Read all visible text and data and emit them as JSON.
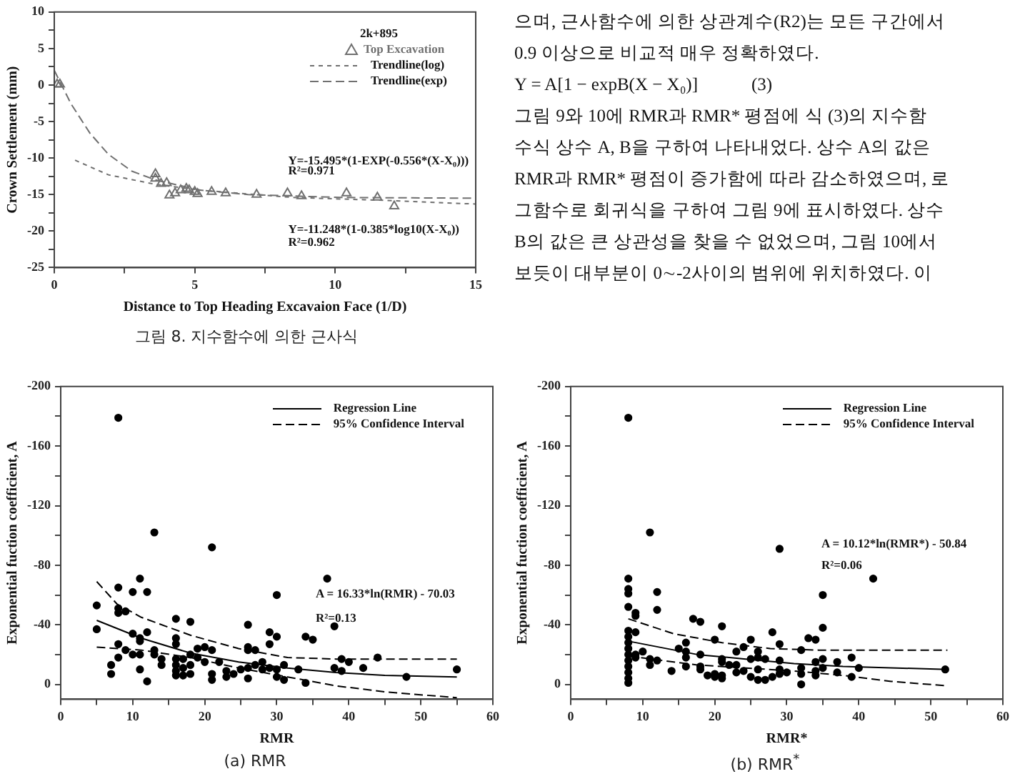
{
  "chart_data": [
    {
      "type": "scatter",
      "xlabel": "Distance to Top Heading Excavaion Face (1/D)",
      "ylabel": "Crown Settlement (mm)",
      "legend_title": "2k+895",
      "legend": "top right",
      "xlim": [
        0,
        15
      ],
      "xticks": [
        0,
        {
          "value": 2.5,
          "label": null
        },
        5,
        {
          "value": 7.5,
          "label": null
        },
        10,
        {
          "value": 12.5,
          "label": null
        },
        15
      ],
      "ylim": [
        -25,
        10
      ],
      "yticks": [
        -25,
        {
          "value": -22.5,
          "label": null
        },
        -20,
        {
          "value": -17.5,
          "label": null
        },
        -15,
        {
          "value": -12.5,
          "label": null
        },
        -10,
        {
          "value": -7.5,
          "label": null
        },
        -5,
        {
          "value": -2.5,
          "label": null
        },
        0,
        {
          "value": 2.5,
          "label": null
        },
        5,
        {
          "value": 7.5,
          "label": null
        },
        10
      ],
      "series": [
        {
          "name": "Top Excavation",
          "type": "scatter",
          "marker": "triangle",
          "color": "#707070",
          "x": [
            0.1,
            0.2,
            3.6,
            3.6,
            3.8,
            4.0,
            4.1,
            4.3,
            4.5,
            4.7,
            4.8,
            5.0,
            5.1,
            5.6,
            6.1,
            7.2,
            8.3,
            8.8,
            10.4,
            11.5,
            12.1
          ],
          "values": [
            0.1,
            0.1,
            -12.2,
            -12.8,
            -13.5,
            -13.4,
            -15.1,
            -14.8,
            -14.4,
            -14.2,
            -14.4,
            -14.6,
            -14.9,
            -14.6,
            -14.8,
            -15.0,
            -14.8,
            -15.2,
            -14.8,
            -15.4,
            -16.6
          ]
        },
        {
          "name": "Trendline(log)",
          "type": "line",
          "line_style": "dotted",
          "color": "#707070",
          "x": [
            0.74,
            1.93,
            3.6,
            5.2,
            8.5,
            11.8,
            15
          ],
          "values": [
            -10.3,
            -12.3,
            -13.6,
            -14.4,
            -15.4,
            -15.8,
            -16.3
          ]
        },
        {
          "name": "Trendline(exp)",
          "type": "line",
          "line_style": "dashed",
          "color": "#707070",
          "x": [
            0,
            0.6,
            1.27,
            1.93,
            2.76,
            3.6,
            5.2,
            6.9,
            10.2,
            15
          ],
          "values": [
            2.0,
            -2.6,
            -6.6,
            -9.5,
            -11.8,
            -13.0,
            -14.4,
            -15.0,
            -15.4,
            -15.5
          ]
        }
      ],
      "annotations": [
        "Y=-15.495*(1-EXP(-0.556*(X-X₀)))",
        "R²=0.971",
        "Y=-11.248*(1-0.385*log10(X-X₀))",
        "R²=0.962",
        "그림 8. 지수함수에 의한 근사식"
      ]
    },
    {
      "type": "other",
      "annotations": [
        "으며, 근사함수에 의한 상관계수(R2)는 모든 구간에서",
        "0.9 이상으로 비교적 매우 정확하였다.",
        "Y = A[1 − expB(X − X₀)]            (3)",
        "그림 9와 10에 RMR과 RMR* 평점에 식 (3)의 지수함",
        "수식 상수 A, B을 구하여 나타내었다. 상수 A의 값은",
        "RMR과 RMR* 평점이 증가함에 따라 감소하였으며, 로",
        "그함수로 회귀식을 구하여 그림 9에 표시하였다. 상수",
        "B의 값은 큰 상관성을 찾을 수 없었으며, 그림 10에서",
        "보듯이 대부분이 0∼-2사이의 범위에 위치하였다. 이"
      ]
    },
    {
      "type": "scatter",
      "xlabel": "RMR",
      "ylabel": "Exponential fuction coefficient, A",
      "legend": "top right",
      "xlim": [
        0,
        60
      ],
      "xticks": [
        0,
        {
          "value": 5,
          "label": null
        },
        10,
        {
          "value": 15,
          "label": null
        },
        20,
        {
          "value": 25,
          "label": null
        },
        30,
        {
          "value": 35,
          "label": null
        },
        40,
        {
          "value": 45,
          "label": null
        },
        50,
        {
          "value": 55,
          "label": null
        },
        60
      ],
      "ylim": [
        10,
        -200
      ],
      "yticks": [
        0,
        {
          "value": -20,
          "label": null
        },
        -40,
        {
          "value": -60,
          "label": null
        },
        -80,
        {
          "value": -100,
          "label": null
        },
        -120,
        {
          "value": -140,
          "label": null
        },
        -160,
        {
          "value": -180,
          "label": null
        },
        -200
      ],
      "series": [
        {
          "type": "scatter",
          "marker": "circle",
          "color": "#000000",
          "x": [
            5,
            5,
            7,
            7,
            8,
            8,
            8,
            8,
            8,
            8,
            9,
            9,
            10,
            10,
            10,
            11,
            11,
            11,
            11,
            11,
            12,
            12,
            12,
            13,
            13,
            13,
            14,
            14,
            16,
            16,
            16,
            16,
            16,
            16,
            16,
            17,
            17,
            17,
            18,
            18,
            18,
            18,
            19,
            19,
            20,
            20,
            21,
            21,
            21,
            21,
            22,
            23,
            23,
            24,
            25,
            26,
            26,
            26,
            26,
            26,
            27,
            27,
            28,
            28,
            29,
            29,
            29,
            30,
            30,
            30,
            30,
            31,
            31,
            33,
            34,
            34,
            35,
            37,
            38,
            38,
            39,
            39,
            40,
            42,
            44,
            48,
            55
          ],
          "values": [
            -53,
            -37,
            -13,
            -7,
            -179,
            -65,
            -51,
            -48,
            -27,
            -18,
            -49,
            -23,
            -62,
            -34,
            -20,
            -71,
            -31,
            -29,
            -20,
            -10,
            -62,
            -35,
            -2,
            -102,
            -23,
            -20,
            -17,
            -13,
            -44,
            -31,
            -27,
            -17,
            -13,
            -9,
            -6,
            -17,
            -11,
            -6,
            -42,
            -20,
            -13,
            -7,
            -24,
            -18,
            -25,
            -15,
            -92,
            -23,
            -7,
            -3,
            -15,
            -9,
            -5,
            -7,
            -10,
            -40,
            -25,
            -23,
            -11,
            -4,
            -23,
            -13,
            -15,
            -10,
            -35,
            -27,
            -11,
            -60,
            -32,
            -10,
            -5,
            -13,
            -3,
            -10,
            -32,
            -1,
            -30,
            -71,
            -39,
            -11,
            -17,
            -9,
            -15,
            -11,
            -18,
            -5,
            -10
          ]
        },
        {
          "name": "Regression Line",
          "type": "line",
          "line_style": "solid",
          "color": "#000000",
          "x": [
            5,
            11.2,
            18,
            24.7,
            31.5,
            38.2,
            45,
            55
          ],
          "values": [
            -43,
            -31,
            -21,
            -15,
            -11,
            -8,
            -6,
            -5
          ]
        },
        {
          "name": "95% Confidence Interval",
          "type": "line",
          "line_style": "dashed",
          "color": "#000000",
          "x": [
            5,
            7.8,
            11.2,
            18,
            24.7,
            31.5,
            38.2,
            55
          ],
          "values": [
            -69,
            -54,
            -45,
            -33,
            -24,
            -18,
            -17,
            -17
          ]
        },
        {
          "type": "line",
          "line_style": "dashed",
          "color": "#000000",
          "x": [
            5,
            11.2,
            18,
            24.7,
            31.5,
            38.2,
            45,
            55
          ],
          "values": [
            -25,
            -23,
            -18,
            -11,
            -5,
            1,
            5,
            9
          ]
        }
      ],
      "annotations": [
        "A = 16.33*ln(RMR) - 70.03",
        "R²=0.13",
        "(a) RMR"
      ]
    },
    {
      "type": "scatter",
      "xlabel": "RMR*",
      "ylabel": "Exponential fuction coefficient, A",
      "legend": "top right",
      "xlim": [
        0,
        60
      ],
      "xticks": [
        0,
        {
          "value": 5,
          "label": null
        },
        10,
        {
          "value": 15,
          "label": null
        },
        20,
        {
          "value": 25,
          "label": null
        },
        30,
        {
          "value": 35,
          "label": null
        },
        40,
        {
          "value": 45,
          "label": null
        },
        50,
        {
          "value": 55,
          "label": null
        },
        60
      ],
      "ylim": [
        10,
        -200
      ],
      "yticks": [
        0,
        {
          "value": -20,
          "label": null
        },
        -40,
        {
          "value": -60,
          "label": null
        },
        -80,
        {
          "value": -100,
          "label": null
        },
        -120,
        {
          "value": -140,
          "label": null
        },
        -160,
        {
          "value": -180,
          "label": null
        },
        -200
      ],
      "series": [
        {
          "type": "scatter",
          "marker": "circle",
          "color": "#000000",
          "x": [
            8,
            8,
            8,
            8,
            8,
            8,
            8,
            8,
            8,
            8,
            8,
            8,
            8,
            8,
            8,
            9,
            9,
            9,
            9,
            9,
            10,
            11,
            11,
            11,
            12,
            12,
            12,
            14,
            15,
            16,
            16,
            16,
            16,
            17,
            18,
            18,
            18,
            18,
            19,
            20,
            20,
            20,
            21,
            21,
            21,
            21,
            21,
            22,
            23,
            23,
            23,
            24,
            24,
            25,
            25,
            25,
            26,
            26,
            26,
            26,
            27,
            27,
            28,
            28,
            29,
            29,
            29,
            29,
            29,
            30,
            32,
            32,
            32,
            32,
            33,
            34,
            34,
            34,
            34,
            35,
            35,
            35,
            35,
            37,
            37,
            39,
            39,
            40,
            42,
            52
          ],
          "values": [
            -179,
            -71,
            -64,
            -61,
            -52,
            -36,
            -32,
            -28,
            -24,
            -20,
            -16,
            -12,
            -8,
            -4,
            -1,
            -48,
            -46,
            -35,
            -20,
            -18,
            -22,
            -102,
            -17,
            -13,
            -62,
            -50,
            -16,
            -9,
            -24,
            -28,
            -22,
            -18,
            -12,
            -44,
            -42,
            -20,
            -12,
            -10,
            -6,
            -30,
            -7,
            -5,
            -39,
            -17,
            -15,
            -6,
            -4,
            -13,
            -22,
            -13,
            -8,
            -25,
            -9,
            -30,
            -17,
            -5,
            -22,
            -18,
            -10,
            -3,
            -17,
            -3,
            -35,
            -5,
            -91,
            -27,
            -16,
            -10,
            -7,
            -8,
            -23,
            -11,
            -7,
            0,
            -31,
            -30,
            -15,
            -9,
            -6,
            -60,
            -38,
            -17,
            -11,
            -15,
            -8,
            -18,
            -5,
            -11,
            -71,
            -10
          ]
        },
        {
          "name": "Regression Line",
          "type": "line",
          "line_style": "solid",
          "color": "#000000",
          "x": [
            8,
            17.6,
            24.3,
            31,
            37.8,
            52.3
          ],
          "values": [
            -29,
            -20,
            -17,
            -14,
            -12,
            -10
          ]
        },
        {
          "name": "95% Confidence Interval",
          "type": "line",
          "line_style": "dashed",
          "color": "#000000",
          "x": [
            8,
            14.3,
            21,
            27.7,
            34.4,
            52.3
          ],
          "values": [
            -44,
            -34,
            -28,
            -24,
            -23,
            -23
          ]
        },
        {
          "type": "line",
          "line_style": "dashed",
          "color": "#000000",
          "x": [
            8,
            17.6,
            24.3,
            31,
            37.8,
            44.5,
            52.3
          ],
          "values": [
            -19,
            -13,
            -11,
            -9,
            -6,
            -2,
            1
          ]
        }
      ],
      "annotations": [
        "A = 10.12*ln(RMR*) - 50.84",
        "R²=0.06",
        "(b) RMR$^{*}$"
      ]
    }
  ]
}
